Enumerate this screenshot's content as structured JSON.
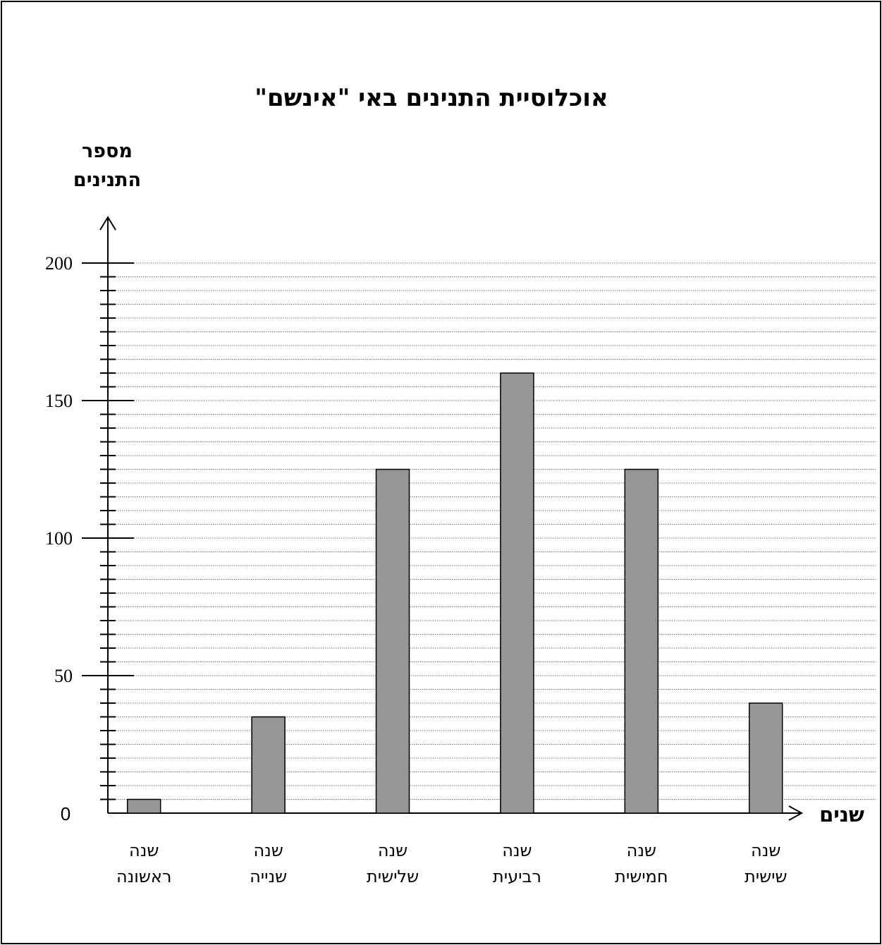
{
  "chart_data": {
    "type": "bar",
    "title": "אוכלוסיית התנינים באי \"אינשם\"",
    "ylabel_lines": [
      "מספר",
      "התנינים"
    ],
    "xlabel": "שנים",
    "categories": [
      [
        "שנה",
        "ראשונה"
      ],
      [
        "שנה",
        "שנייה"
      ],
      [
        "שנה",
        "שלישית"
      ],
      [
        "שנה",
        "רביעית"
      ],
      [
        "שנה",
        "חמישית"
      ],
      [
        "שנה",
        "שישית"
      ]
    ],
    "values": [
      5,
      35,
      125,
      160,
      125,
      40
    ],
    "ylim": [
      0,
      200
    ],
    "yticks": [
      "0",
      "50",
      "100",
      "150",
      "200"
    ],
    "minor_step": 5,
    "grid": true,
    "bar_color": "#969696"
  }
}
